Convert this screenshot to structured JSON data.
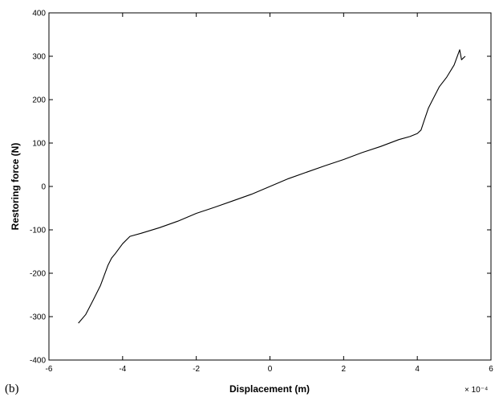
{
  "chart_data": {
    "type": "line",
    "panel_label": "(b)",
    "xlabel": "Displacement (m)",
    "ylabel": "Restoring force (N)",
    "x_multiplier": "× 10⁻⁴",
    "xlim": [
      -6,
      6
    ],
    "ylim": [
      -400,
      400
    ],
    "x_ticks": [
      -6,
      -4,
      -2,
      0,
      2,
      4,
      6
    ],
    "y_ticks": [
      400,
      300,
      200,
      100,
      0,
      -100,
      -200,
      -300,
      -400
    ],
    "grid": false,
    "series": [
      {
        "x": [
          -5.2,
          -5.0,
          -4.8,
          -4.6,
          -4.5,
          -4.4,
          -4.3,
          -4.2,
          -4.0,
          -3.8,
          -3.5,
          -3.0,
          -2.5,
          -2.0,
          -1.5,
          -1.0,
          -0.5,
          0.0,
          0.5,
          1.0,
          1.5,
          2.0,
          2.5,
          3.0,
          3.5,
          3.8,
          4.0,
          4.1,
          4.2,
          4.3,
          4.4,
          4.6,
          4.8,
          5.0,
          5.15,
          5.2,
          5.3
        ],
        "y": [
          -315,
          -295,
          -262,
          -228,
          -205,
          -182,
          -165,
          -155,
          -132,
          -115,
          -108,
          -95,
          -80,
          -62,
          -48,
          -33,
          -18,
          0,
          18,
          33,
          48,
          62,
          78,
          92,
          108,
          115,
          122,
          130,
          155,
          180,
          197,
          230,
          252,
          280,
          315,
          292,
          300
        ]
      }
    ]
  }
}
